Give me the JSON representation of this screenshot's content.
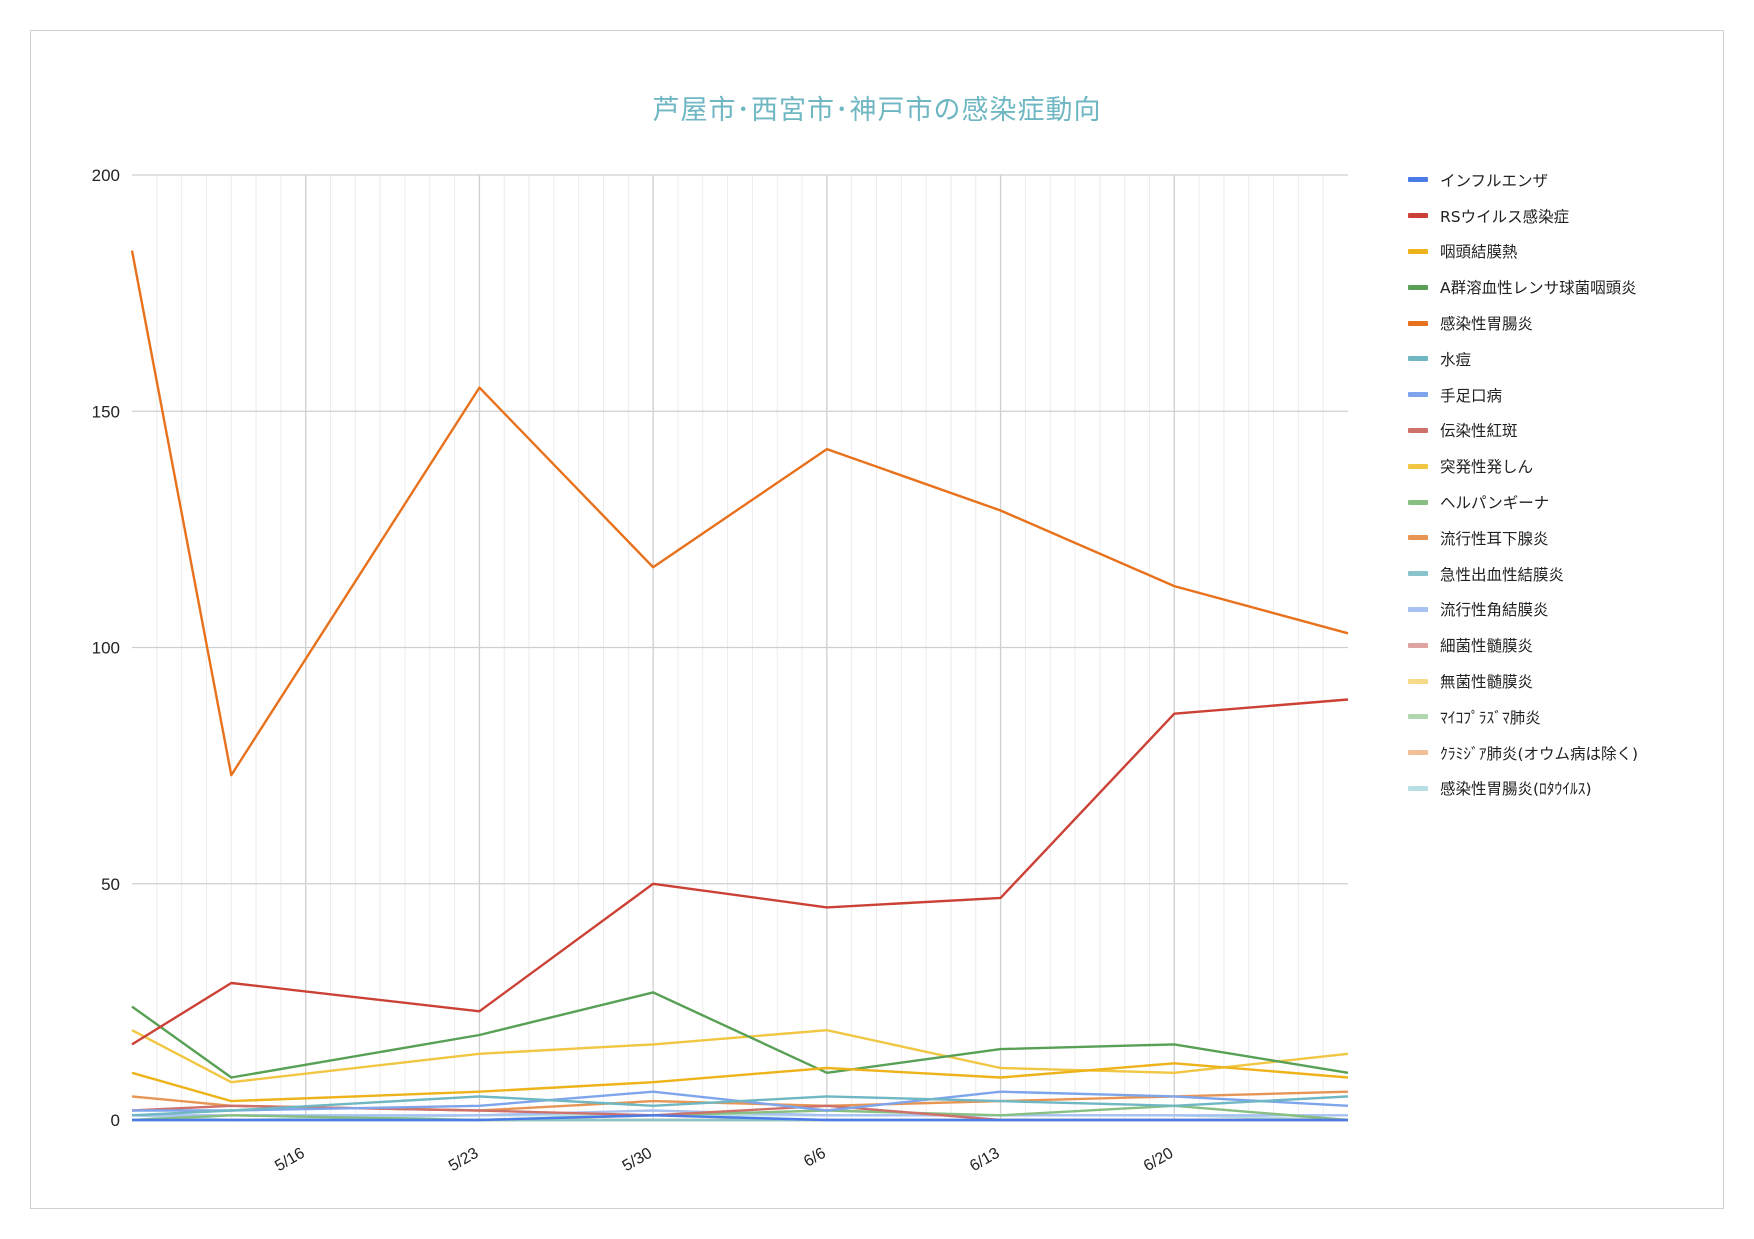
{
  "chart_data": {
    "type": "line",
    "title": "芦屋市･西宮市･神戸市の感染症動向",
    "ylim": [
      0,
      200
    ],
    "yticks": [
      0,
      50,
      100,
      150,
      200
    ],
    "x_dates": [
      "5/9",
      "5/13",
      "5/23",
      "5/30",
      "6/6",
      "6/13",
      "6/20",
      "6/27"
    ],
    "xlim": [
      "5/9",
      "6/27"
    ],
    "xtick_labels": [
      "5/16",
      "5/23",
      "5/30",
      "6/6",
      "6/13",
      "6/20"
    ],
    "grid": true,
    "legend_position": "right",
    "series": [
      {
        "name": "インフルエンザ",
        "color": "#4a7be8",
        "values": [
          0,
          0,
          0,
          1,
          0,
          0,
          0,
          0
        ]
      },
      {
        "name": "RSウイルス感染症",
        "color": "#cc4136",
        "values": [
          16,
          29,
          23,
          50,
          45,
          47,
          86,
          89
        ]
      },
      {
        "name": "咽頭結膜熱",
        "color": "#eeb31a",
        "values": [
          10,
          4,
          6,
          8,
          11,
          9,
          12,
          9
        ]
      },
      {
        "name": "A群溶血性レンサ球菌咽頭炎",
        "color": "#58a055",
        "values": [
          24,
          9,
          18,
          27,
          10,
          15,
          16,
          10
        ]
      },
      {
        "name": "感染性胃腸炎",
        "color": "#e8711c",
        "values": [
          184,
          73,
          155,
          117,
          142,
          129,
          113,
          103
        ]
      },
      {
        "name": "水痘",
        "color": "#6fb7c2",
        "values": [
          1,
          2,
          5,
          3,
          5,
          4,
          3,
          5
        ]
      },
      {
        "name": "手足口病",
        "color": "#7ea5ec",
        "values": [
          2,
          2,
          3,
          6,
          2,
          6,
          5,
          3
        ]
      },
      {
        "name": "伝染性紅斑",
        "color": "#cf716b",
        "values": [
          2,
          3,
          2,
          1,
          3,
          0,
          0,
          0
        ]
      },
      {
        "name": "突発性発しん",
        "color": "#f0c643",
        "values": [
          19,
          8,
          14,
          16,
          19,
          11,
          10,
          14
        ]
      },
      {
        "name": "ヘルパンギーナ",
        "color": "#86bf81",
        "values": [
          0,
          1,
          0,
          1,
          2,
          1,
          3,
          0
        ]
      },
      {
        "name": "流行性耳下腺炎",
        "color": "#e79554",
        "values": [
          5,
          3,
          2,
          4,
          3,
          4,
          5,
          6
        ]
      },
      {
        "name": "急性出血性結膜炎",
        "color": "#89c3cc",
        "values": [
          0,
          0,
          0,
          0,
          0,
          0,
          0,
          0
        ]
      },
      {
        "name": "流行性角結膜炎",
        "color": "#a7c1f2",
        "values": [
          1,
          1,
          1,
          2,
          1,
          1,
          1,
          1
        ]
      },
      {
        "name": "細菌性髄膜炎",
        "color": "#e0a4a0",
        "values": [
          0,
          0,
          0,
          0,
          0,
          0,
          0,
          0
        ]
      },
      {
        "name": "無菌性髄膜炎",
        "color": "#f6da8a",
        "values": [
          0,
          0,
          0,
          0,
          0,
          0,
          0,
          0
        ]
      },
      {
        "name": "ﾏｲｺﾌﾟﾗｽﾞﾏ肺炎",
        "color": "#b0d7ad",
        "values": [
          0,
          0,
          0,
          0,
          0,
          0,
          0,
          0
        ]
      },
      {
        "name": "ｸﾗﾐｼﾞｱ肺炎(オウム病は除く)",
        "color": "#f1bf97",
        "values": [
          0,
          0,
          0,
          0,
          0,
          0,
          0,
          0
        ]
      },
      {
        "name": "感染性胃腸炎(ﾛﾀｳｲﾙｽ)",
        "color": "#b8dde2",
        "values": [
          1,
          0,
          1,
          1,
          1,
          1,
          1,
          0
        ]
      }
    ]
  }
}
